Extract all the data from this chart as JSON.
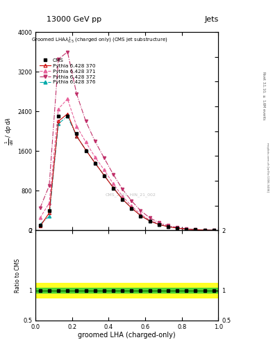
{
  "title_top": "13000 GeV pp",
  "title_right": "Jets",
  "plot_title": "Groomed LHA$\\lambda^{1}_{0.5}$ (charged only) (CMS jet substructure)",
  "xlabel": "groomed LHA (charged-only)",
  "ylabel_main": "$\\frac{1}{\\mathrm{d}N}$ / $\\mathrm{d}p$ $\\mathrm{d}\\lambda$",
  "ylabel_ratio": "Ratio to CMS",
  "right_label1": "Rivet 3.1.10, $\\geq$ 1.6M events",
  "right_label2": "mcplots.cern.ch [arXiv:1306.3436]",
  "watermark": "CMS_2021_HIN_21_002",
  "x_pts": [
    0.025,
    0.075,
    0.125,
    0.175,
    0.225,
    0.275,
    0.325,
    0.375,
    0.425,
    0.475,
    0.525,
    0.575,
    0.625,
    0.675,
    0.725,
    0.775,
    0.825,
    0.875,
    0.925,
    0.975
  ],
  "y_cms": [
    100,
    400,
    2300,
    2300,
    1950,
    1600,
    1350,
    1100,
    850,
    620,
    440,
    290,
    185,
    115,
    70,
    42,
    22,
    11,
    5,
    1
  ],
  "y_370": [
    80,
    350,
    2200,
    2350,
    1900,
    1620,
    1360,
    1110,
    860,
    630,
    450,
    295,
    188,
    117,
    72,
    43,
    23,
    11,
    5,
    1
  ],
  "y_371": [
    250,
    550,
    2450,
    2650,
    2100,
    1780,
    1480,
    1220,
    940,
    690,
    490,
    325,
    205,
    128,
    78,
    47,
    25,
    12,
    5,
    1
  ],
  "y_372": [
    450,
    900,
    3450,
    3600,
    2750,
    2200,
    1800,
    1460,
    1130,
    830,
    595,
    395,
    250,
    155,
    95,
    57,
    30,
    14,
    6,
    1
  ],
  "y_376": [
    120,
    280,
    2150,
    2300,
    1900,
    1620,
    1360,
    1110,
    860,
    630,
    450,
    295,
    188,
    117,
    72,
    43,
    23,
    11,
    5,
    1
  ],
  "color_cms": "#000000",
  "color_370": "#cc0000",
  "color_371": "#e8609a",
  "color_372": "#c0306a",
  "color_376": "#00aaaa",
  "ylim_main_max": 4000,
  "ylim_ratio_lo": 0.5,
  "ylim_ratio_hi": 2.0,
  "green_lo": 0.96,
  "green_hi": 1.04,
  "yellow_lo": 0.88,
  "yellow_hi": 1.12
}
